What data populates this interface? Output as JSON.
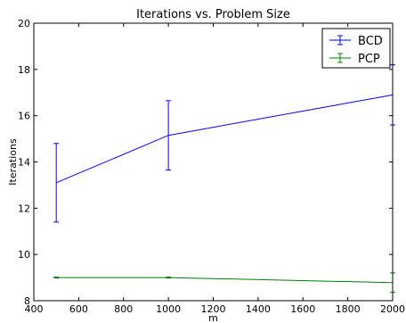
{
  "chart_data": {
    "type": "line",
    "title": "Iterations vs. Problem Size",
    "xlabel": "m",
    "ylabel": "Iterations",
    "xlim": [
      400,
      2000
    ],
    "ylim": [
      8,
      20
    ],
    "xticks": [
      400,
      600,
      800,
      1000,
      1200,
      1400,
      1600,
      1800,
      2000
    ],
    "yticks": [
      8,
      10,
      12,
      14,
      16,
      18,
      20
    ],
    "grid": false,
    "legend_position": "top-right",
    "series": [
      {
        "name": "BCD",
        "color": "#0000ff",
        "x": [
          500,
          1000,
          2000
        ],
        "y": [
          13.1,
          15.15,
          16.9
        ],
        "err": [
          1.7,
          1.5,
          1.3
        ]
      },
      {
        "name": "PCP",
        "color": "#008000",
        "x": [
          500,
          1000,
          2000
        ],
        "y": [
          9.0,
          9.0,
          8.78
        ],
        "err": [
          0.02,
          0.02,
          0.42
        ]
      }
    ]
  }
}
